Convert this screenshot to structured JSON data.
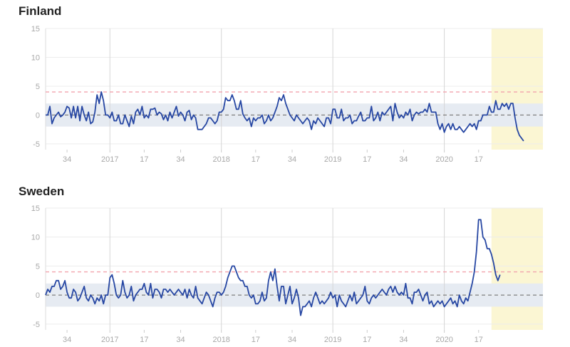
{
  "colors": {
    "line": "#2747a3",
    "threshold": "#f2a3ad",
    "band": "#e6ebf2",
    "zero": "#666666",
    "grid": "#d6d6d6",
    "highlight": "#fbf6d3"
  },
  "chart_data": [
    {
      "type": "line",
      "title": "Finland",
      "ylim": [
        -6,
        15
      ],
      "yticks": [
        15,
        10,
        5,
        0,
        -5
      ],
      "xlim": [
        0,
        232
      ],
      "xticks": [
        {
          "x": 10,
          "label": "34"
        },
        {
          "x": 30,
          "label": "2017"
        },
        {
          "x": 46,
          "label": "17"
        },
        {
          "x": 63,
          "label": "34"
        },
        {
          "x": 82,
          "label": "2018"
        },
        {
          "x": 98,
          "label": "17"
        },
        {
          "x": 115,
          "label": "34"
        },
        {
          "x": 134,
          "label": "2019"
        },
        {
          "x": 150,
          "label": "17"
        },
        {
          "x": 167,
          "label": "34"
        },
        {
          "x": 186,
          "label": "2020"
        },
        {
          "x": 202,
          "label": "17"
        }
      ],
      "grid_x": [
        30,
        82,
        134,
        186
      ],
      "threshold": 4,
      "band": [
        -2,
        2
      ],
      "highlight_from": 208,
      "values": [
        0,
        0,
        1.5,
        -1.5,
        -0.5,
        0,
        0.5,
        -0.3,
        0,
        0.5,
        1.5,
        1.2,
        -0.5,
        1.5,
        -0.5,
        1.5,
        -1.0,
        1.5,
        0,
        -1.0,
        0.5,
        -1.5,
        -1.2,
        0.5,
        3.5,
        2.0,
        4.0,
        2.5,
        0,
        0,
        -0.5,
        0.5,
        -1.0,
        -1.0,
        0,
        -1.5,
        -1.5,
        0,
        -1.0,
        -2.0,
        -0.2,
        -1.5,
        0.5,
        1.0,
        0,
        1.5,
        -0.5,
        0,
        -0.5,
        1.0,
        1.0,
        1.2,
        0,
        0.5,
        0.2,
        -0.8,
        0,
        -1.0,
        0.5,
        -0.5,
        0.5,
        1.5,
        -0.2,
        0.5,
        0,
        -1.0,
        0.5,
        0.8,
        -0.8,
        0,
        -0.5,
        -2.5,
        -2.5,
        -2.5,
        -2.0,
        -1.5,
        -0.5,
        -0.5,
        -1.0,
        -1.5,
        -1.0,
        0.5,
        0.5,
        1.0,
        3.0,
        2.5,
        2.5,
        3.5,
        2.5,
        1.0,
        1.0,
        2.5,
        0.2,
        -0.5,
        -1.0,
        -0.5,
        -2.0,
        -0.5,
        -1.0,
        -0.5,
        -0.5,
        0,
        -1.5,
        -1.0,
        0,
        -1.0,
        -0.5,
        0.5,
        1.5,
        3.0,
        2.5,
        3.5,
        2.0,
        1.0,
        0,
        -0.5,
        -1.0,
        0,
        -0.5,
        -1.0,
        -1.5,
        -1.0,
        -0.5,
        -1.0,
        -2.5,
        -1.0,
        -1.5,
        -0.5,
        -1.0,
        -1.5,
        -2.0,
        -0.5,
        -0.5,
        -1.5,
        1.0,
        1.0,
        -0.5,
        -0.5,
        1.0,
        -1.0,
        -0.5,
        -0.5,
        0,
        -1.5,
        -1.0,
        -1.0,
        -0.2,
        0.5,
        -1.0,
        -1.0,
        -0.5,
        -0.5,
        1.5,
        -1.0,
        -0.5,
        0.5,
        -1.0,
        0.5,
        0,
        0.5,
        1.0,
        1.5,
        -1.0,
        2.0,
        0.5,
        -0.5,
        0,
        -0.5,
        0.5,
        0,
        1.0,
        -1.0,
        0,
        0.5,
        0.2,
        0.5,
        0.5,
        1.0,
        0.5,
        2.0,
        0.5,
        0.5,
        0.5,
        -1.5,
        -2.5,
        -1.5,
        -3.0,
        -2.0,
        -1.5,
        -2.5,
        -1.5,
        -2.5,
        -2.5,
        -2.0,
        -2.5,
        -3.0,
        -2.5,
        -2.0,
        -1.5,
        -2.0,
        -1.5,
        -2.5,
        -1.0,
        -1.0,
        0,
        0,
        0,
        1.5,
        0.5,
        0.5,
        2.5,
        1.0,
        1.0,
        2.0,
        1.5,
        2.0,
        1.0,
        2.0,
        2.0,
        -0.5,
        -2.5,
        -3.5,
        -4.0,
        -4.5
      ]
    },
    {
      "type": "line",
      "title": "Sweden",
      "ylim": [
        -6,
        15
      ],
      "yticks": [
        15,
        10,
        5,
        0,
        -5
      ],
      "xlim": [
        0,
        232
      ],
      "xticks": [
        {
          "x": 10,
          "label": "34"
        },
        {
          "x": 30,
          "label": "2017"
        },
        {
          "x": 46,
          "label": "17"
        },
        {
          "x": 63,
          "label": "34"
        },
        {
          "x": 82,
          "label": "2018"
        },
        {
          "x": 98,
          "label": "17"
        },
        {
          "x": 115,
          "label": "34"
        },
        {
          "x": 134,
          "label": "2019"
        },
        {
          "x": 150,
          "label": "17"
        },
        {
          "x": 167,
          "label": "34"
        },
        {
          "x": 186,
          "label": "2020"
        },
        {
          "x": 202,
          "label": "17"
        }
      ],
      "grid_x": [
        30,
        82,
        134,
        186
      ],
      "threshold": 4,
      "band": [
        -2,
        2
      ],
      "highlight_from": 208,
      "values": [
        0,
        1.0,
        0.5,
        1.5,
        1.5,
        2.5,
        2.5,
        1.0,
        1.5,
        2.5,
        0.5,
        -0.5,
        -0.5,
        1.0,
        0.5,
        -1.0,
        -0.5,
        0.5,
        1.5,
        -0.5,
        -1.0,
        0,
        -0.5,
        -1.5,
        -0.5,
        -1.0,
        0,
        -1.5,
        0,
        0,
        3.0,
        3.5,
        2.0,
        0,
        -0.5,
        0,
        2.5,
        0.5,
        -0.5,
        0,
        1.5,
        -1.0,
        0,
        0.5,
        1.0,
        1.0,
        2.0,
        0.5,
        0,
        2.0,
        -0.5,
        1.0,
        1.0,
        0.5,
        -0.5,
        1.0,
        1.0,
        0.5,
        1.0,
        0.5,
        0,
        0.5,
        1.0,
        0.5,
        0,
        1.0,
        -0.5,
        1.0,
        0,
        -0.5,
        1.5,
        -0.5,
        -1.0,
        -1.5,
        -0.5,
        0.5,
        0,
        -1.0,
        -2.0,
        -0.5,
        0.5,
        0.5,
        0,
        0.5,
        1.5,
        3.0,
        4.0,
        5.0,
        5.0,
        4.0,
        3.0,
        2.5,
        2.5,
        1.5,
        1.5,
        0,
        -0.5,
        0,
        -1.5,
        -1.5,
        -1.0,
        0.5,
        -1.0,
        -0.5,
        2.5,
        4.0,
        2.5,
        4.5,
        1.5,
        -1.0,
        1.5,
        1.5,
        -1.5,
        0,
        1.5,
        -1.5,
        -0.5,
        1.0,
        -0.5,
        -3.5,
        -2.0,
        -2.0,
        -1.5,
        -1.0,
        -2.0,
        -0.5,
        0.5,
        -0.5,
        -1.5,
        -1.0,
        -1.5,
        -1.0,
        -0.5,
        0.5,
        -0.5,
        0,
        -2.0,
        0,
        -1.0,
        -1.5,
        -2.0,
        -1.0,
        0,
        -1.0,
        0.5,
        -1.5,
        -1.0,
        -0.5,
        0,
        1.5,
        -1.0,
        -1.5,
        -0.5,
        0,
        -0.5,
        0,
        0.5,
        1.0,
        0.5,
        0,
        1.0,
        1.5,
        0.5,
        1.5,
        0.5,
        0,
        0.5,
        0,
        2.0,
        -0.5,
        -0.5,
        -1.5,
        0.5,
        0.5,
        1.0,
        0,
        -1.0,
        0,
        0.5,
        -1.5,
        -1.0,
        -2.0,
        -1.5,
        -1.0,
        -1.5,
        -1.0,
        -2.0,
        -1.5,
        -1.0,
        -0.5,
        -1.5,
        -1.0,
        -2.0,
        0,
        -1.0,
        -1.5,
        -0.5,
        -1.0,
        0.5,
        2.0,
        4.0,
        7.5,
        13.0,
        13.0,
        10.0,
        9.5,
        8.0,
        8.0,
        7.0,
        5.5,
        3.5,
        2.5,
        3.5
      ]
    }
  ]
}
